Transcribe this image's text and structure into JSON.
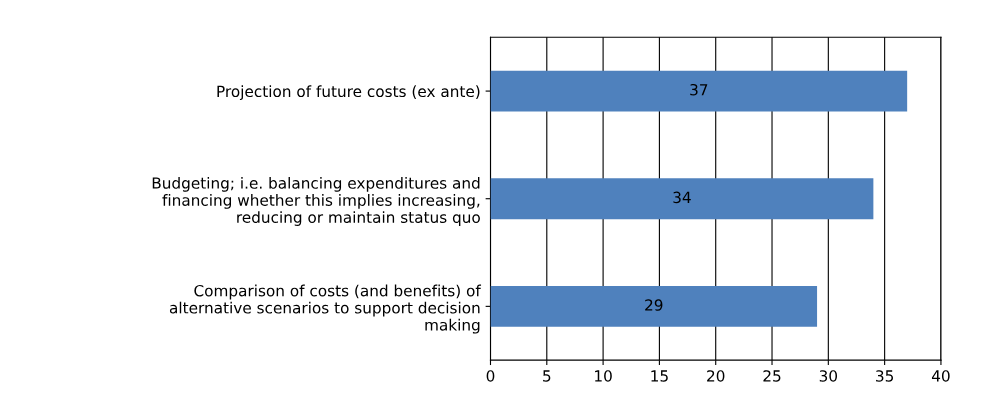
{
  "chart_data": {
    "type": "bar",
    "orientation": "horizontal",
    "categories": [
      "Projection of future costs (ex ante)",
      "Budgeting; i.e. balancing expenditures and\nfinancing whether this implies increasing,\nreducing or maintain status quo",
      "Comparison of costs (and benefits) of\nalternative scenarios to support decision\nmaking"
    ],
    "values": [
      37,
      34,
      29
    ],
    "color": "#4f81bd",
    "xlim": [
      0,
      40
    ],
    "xticks": [
      0,
      5,
      10,
      15,
      20,
      25,
      30,
      35,
      40
    ],
    "grid": "x",
    "data_labels": true
  }
}
